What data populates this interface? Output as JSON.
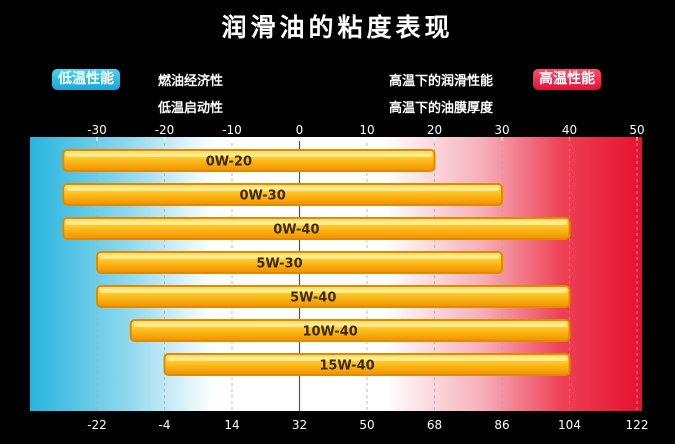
{
  "title": "润滑油的粘度表现",
  "legend": {
    "low_badge": "低温性能",
    "high_badge": "高温性能",
    "low_notes": [
      "燃油经济性",
      "低温启动性"
    ],
    "high_notes": [
      "高温下的润滑性能",
      "高温下的油膜厚度"
    ]
  },
  "colors": {
    "low_temp": "#27b4de",
    "high_temp": "#e5112f",
    "bar_fill": "#f6b21a",
    "bar_border": "#e08a00",
    "background": "#000000"
  },
  "chart_data": {
    "type": "bar",
    "orientation": "horizontal-range",
    "xlabel_celsius": "",
    "xlabel_fahrenheit": "",
    "celsius_ticks": [
      -30,
      -20,
      -10,
      0,
      10,
      20,
      30,
      40,
      50
    ],
    "fahrenheit_ticks": [
      -22,
      -4,
      14,
      32,
      50,
      68,
      86,
      104,
      122
    ],
    "xlim_celsius": [
      -30,
      50
    ],
    "categories": [
      "0W-20",
      "0W-30",
      "0W-40",
      "5W-30",
      "5W-40",
      "10W-40",
      "15W-40"
    ],
    "ranges_celsius": [
      [
        -35,
        20
      ],
      [
        -35,
        30
      ],
      [
        -35,
        40
      ],
      [
        -30,
        30
      ],
      [
        -30,
        40
      ],
      [
        -25,
        40
      ],
      [
        -20,
        40
      ]
    ]
  }
}
